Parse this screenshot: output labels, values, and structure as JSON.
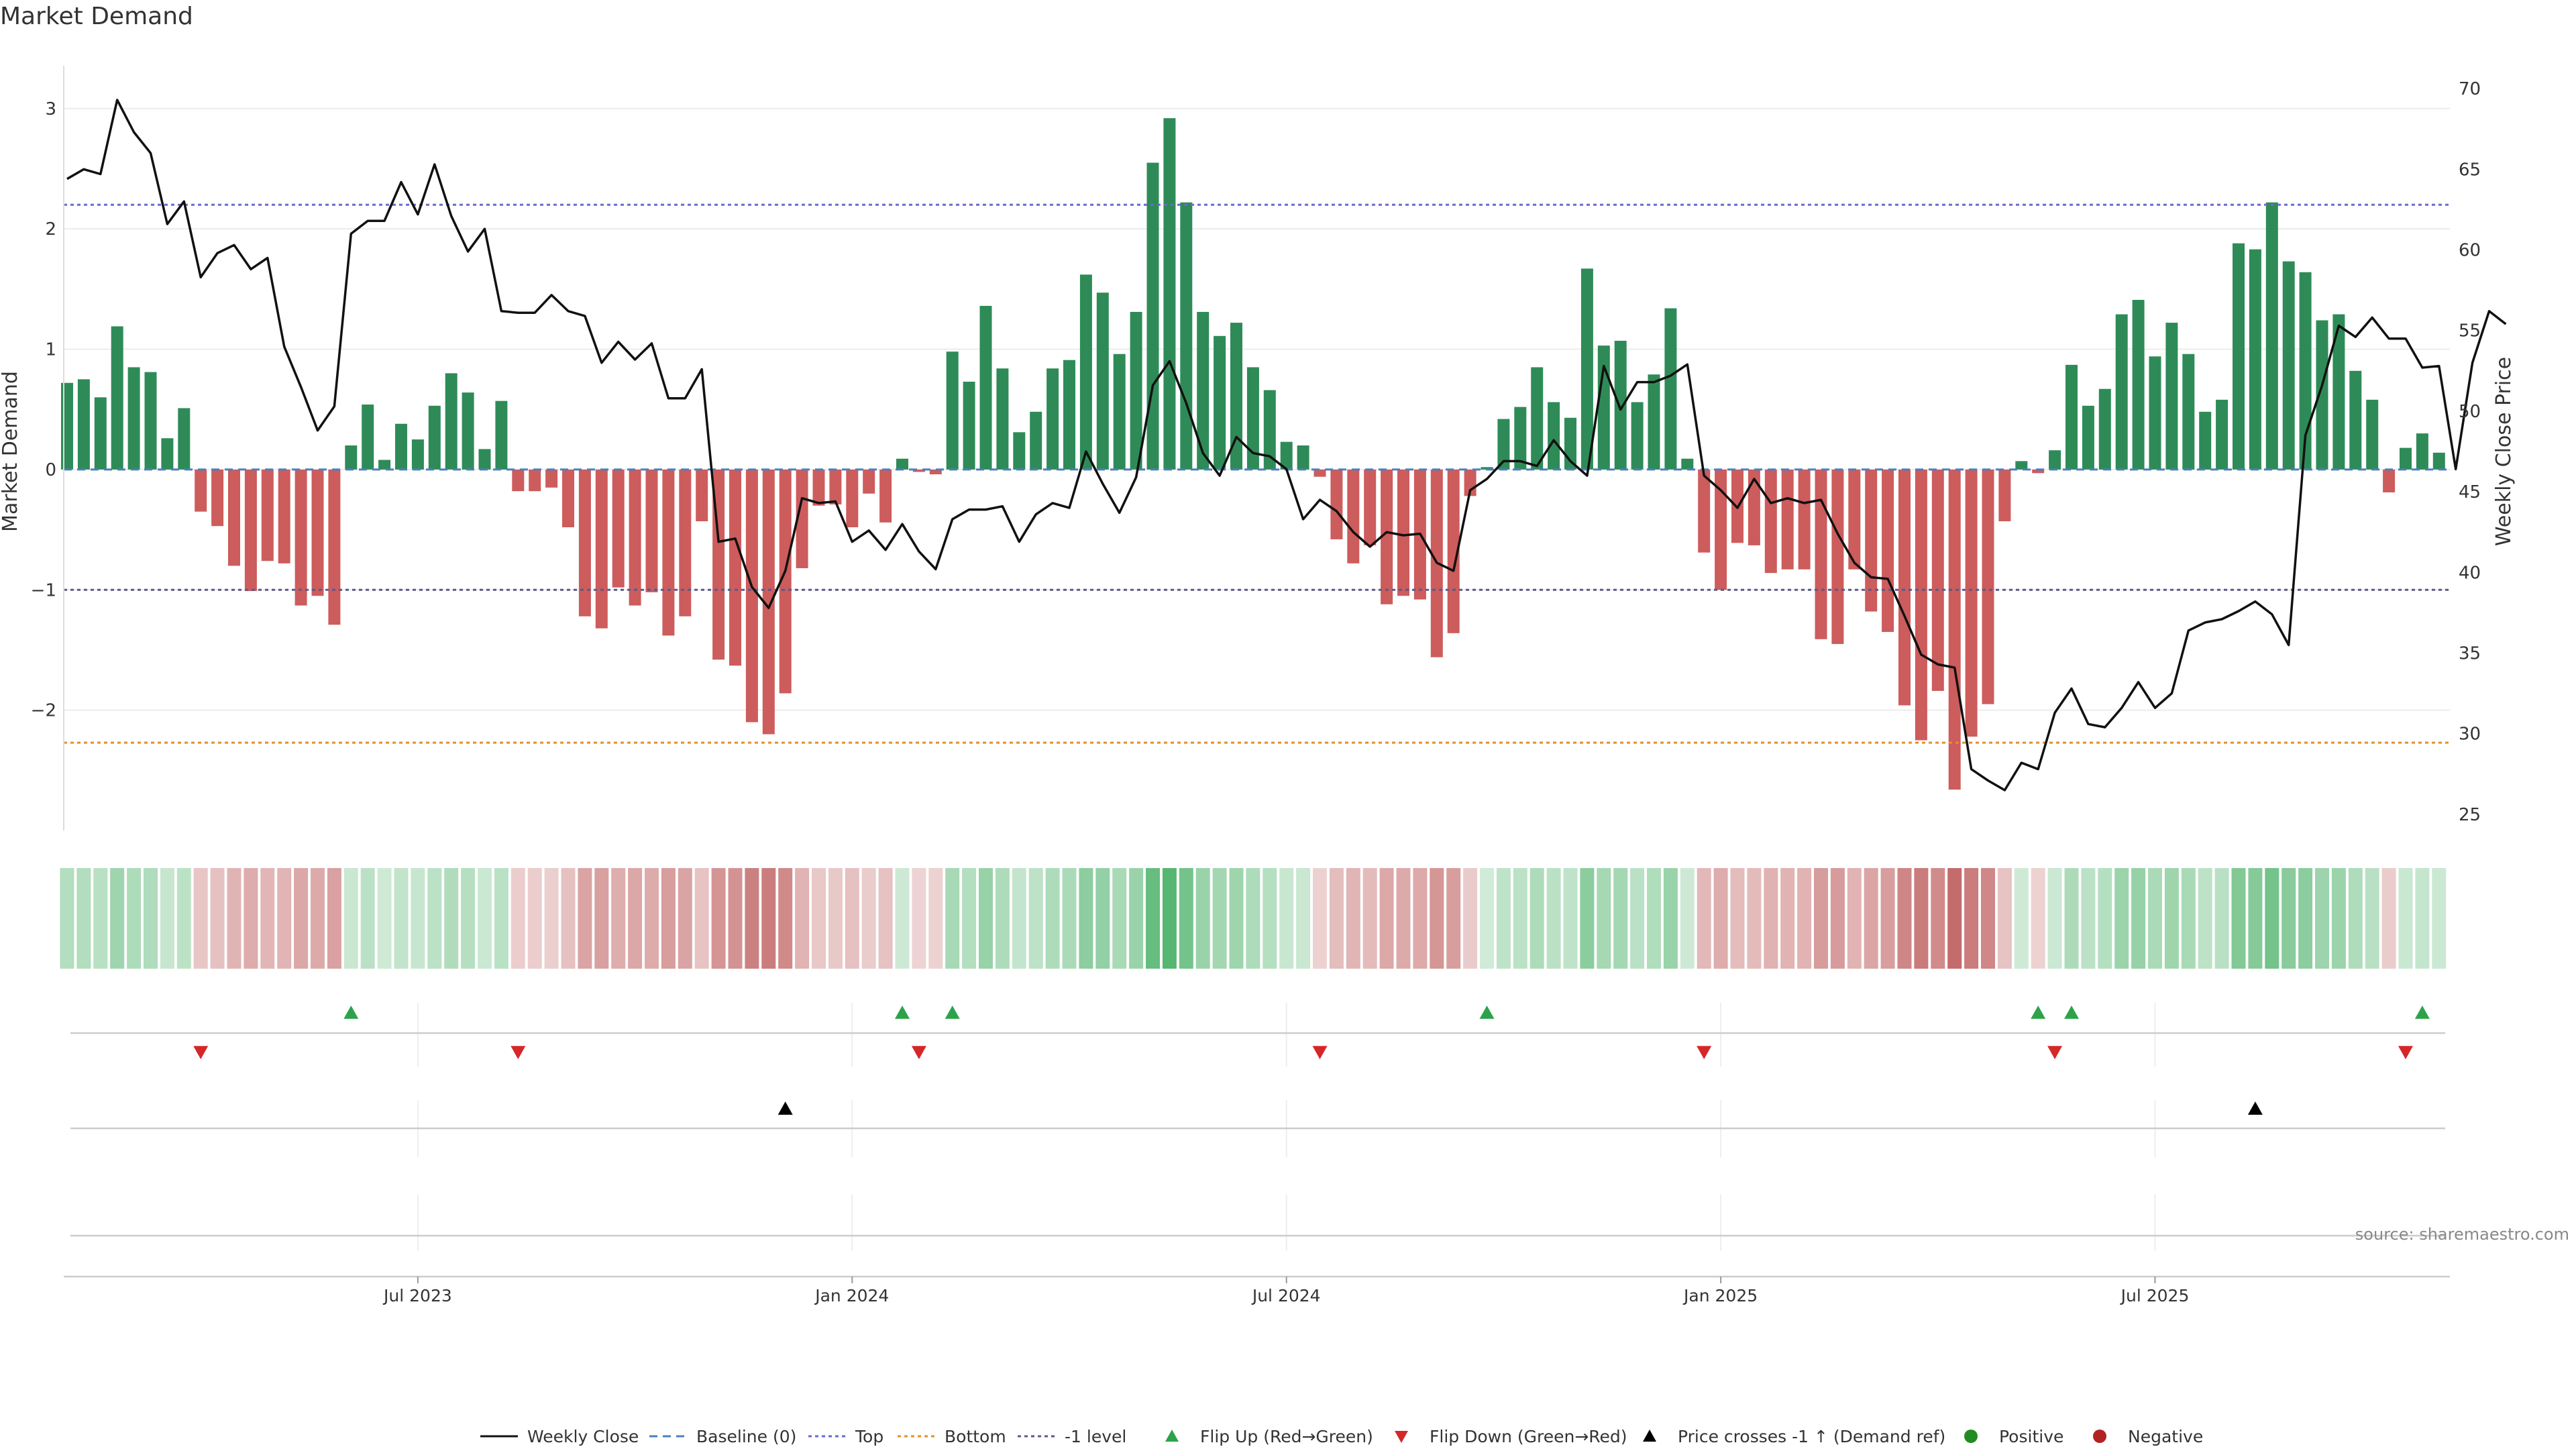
{
  "title": "Market Demand",
  "source": "source: sharemaestro.com",
  "colors": {
    "green": "#2e8b57",
    "red": "#cd5c5c",
    "price": "#111111",
    "top": "#6a6acd",
    "bottom": "#e3902a",
    "minus1": "#5a5a8a",
    "flip_up": "#2ca34a",
    "flip_down": "#d62728",
    "cross": "#000000",
    "positive": "#228b22",
    "negative": "#b22222",
    "grid": "#ececec"
  },
  "chart_data": {
    "type": "bar+line",
    "title": "Market Demand",
    "ylabel_left": "Market Demand",
    "ylabel_right": "Weekly Close Price",
    "ylim_left": [
      -3.0,
      3.3
    ],
    "ylim_right": [
      24,
      71
    ],
    "left_ticks": [
      3,
      2,
      1,
      0,
      -1,
      -2
    ],
    "left_tick_labels": [
      "3",
      "2",
      "1",
      "0",
      "−1",
      "−2"
    ],
    "right_ticks": [
      70,
      65,
      60,
      55,
      50,
      45,
      40,
      35,
      30,
      25
    ],
    "top_level": 2.2,
    "bottom_level": -2.27,
    "minus1_level": -1.0,
    "x_tick_indices": [
      21,
      47,
      73,
      99,
      125
    ],
    "x_tick_labels": [
      "Jul 2023",
      "Jan 2024",
      "Jul 2024",
      "Jan 2025",
      "Jul 2025"
    ],
    "demand": [
      0.72,
      0.75,
      0.6,
      1.19,
      0.85,
      0.81,
      0.26,
      0.51,
      -0.35,
      -0.47,
      -0.8,
      -1.01,
      -0.76,
      -0.78,
      -1.13,
      -1.05,
      -1.29,
      0.2,
      0.54,
      0.08,
      0.38,
      0.25,
      0.53,
      0.8,
      0.64,
      0.17,
      0.57,
      -0.18,
      -0.18,
      -0.15,
      -0.48,
      -1.22,
      -1.32,
      -0.98,
      -1.13,
      -1.02,
      -1.38,
      -1.22,
      -0.43,
      -1.58,
      -1.63,
      -2.1,
      -2.2,
      -1.86,
      -0.82,
      -0.3,
      -0.29,
      -0.48,
      -0.2,
      -0.44,
      0.09,
      -0.02,
      -0.04,
      0.98,
      0.73,
      1.36,
      0.84,
      0.31,
      0.48,
      0.84,
      0.91,
      1.62,
      1.47,
      0.96,
      1.31,
      2.55,
      2.92,
      2.22,
      1.31,
      1.11,
      1.22,
      0.85,
      0.66,
      0.23,
      0.2,
      -0.06,
      -0.58,
      -0.78,
      -0.63,
      -1.12,
      -1.05,
      -1.08,
      -1.56,
      -1.36,
      -0.22,
      0.02,
      0.42,
      0.52,
      0.85,
      0.56,
      0.43,
      1.67,
      1.03,
      1.07,
      0.56,
      0.79,
      1.34,
      0.09,
      -0.69,
      -1.0,
      -0.61,
      -0.63,
      -0.86,
      -0.83,
      -0.83,
      -1.41,
      -1.45,
      -0.83,
      -1.18,
      -1.35,
      -1.96,
      -2.25,
      -1.84,
      -2.66,
      -2.22,
      -1.95,
      -0.43,
      0.07,
      -0.03,
      0.16,
      0.87,
      0.53,
      0.67,
      1.29,
      1.41,
      0.94,
      1.22,
      0.96,
      0.48,
      0.58,
      1.88,
      1.83,
      2.22,
      1.73,
      1.64,
      1.24,
      1.29,
      0.82,
      0.58,
      -0.19,
      0.18,
      0.3,
      0.14
    ],
    "close": [
      64.4,
      65.0,
      64.7,
      69.3,
      67.3,
      66.0,
      61.6,
      63.0,
      58.3,
      59.8,
      60.3,
      58.8,
      59.5,
      54.0,
      51.5,
      48.8,
      50.3,
      61.0,
      61.8,
      61.8,
      64.2,
      62.2,
      65.3,
      62.1,
      59.9,
      61.3,
      56.2,
      56.1,
      56.1,
      57.2,
      56.2,
      55.9,
      53.0,
      54.3,
      53.2,
      54.2,
      50.8,
      50.8,
      52.6,
      41.9,
      42.1,
      39.1,
      37.8,
      40.1,
      44.6,
      44.3,
      44.4,
      41.9,
      42.6,
      41.4,
      43.0,
      41.3,
      40.2,
      43.3,
      43.9,
      43.9,
      44.1,
      41.9,
      43.6,
      44.3,
      44.0,
      47.5,
      45.5,
      43.7,
      45.9,
      51.6,
      53.1,
      50.5,
      47.4,
      46.0,
      48.4,
      47.4,
      47.2,
      46.4,
      43.3,
      44.5,
      43.8,
      42.5,
      41.6,
      42.5,
      42.3,
      42.4,
      40.6,
      40.1,
      45.1,
      45.8,
      46.9,
      46.9,
      46.6,
      48.2,
      46.9,
      46.0,
      52.8,
      50.1,
      51.8,
      51.8,
      52.2,
      52.9,
      46.0,
      45.1,
      44.0,
      45.8,
      44.3,
      44.6,
      44.3,
      44.5,
      42.4,
      40.6,
      39.7,
      39.6,
      37.3,
      34.9,
      34.3,
      34.1,
      27.8,
      27.1,
      26.5,
      28.2,
      27.8,
      31.3,
      32.8,
      30.6,
      30.4,
      31.6,
      33.2,
      31.6,
      32.5,
      36.4,
      36.9,
      37.1,
      37.6,
      38.2,
      37.4,
      35.5,
      48.5,
      51.6,
      55.3,
      54.6,
      55.8,
      54.5,
      54.5,
      52.7,
      52.8,
      46.4,
      53.0,
      56.2,
      55.4
    ],
    "flip_up_indices": [
      17,
      50,
      53,
      85,
      118,
      120,
      141
    ],
    "flip_down_indices": [
      8,
      27,
      51,
      75,
      98,
      119,
      140
    ],
    "price_cross_indices": [
      43,
      131
    ]
  },
  "legend": [
    {
      "label": "Weekly Close",
      "symbol": "line"
    },
    {
      "label": "Baseline (0)",
      "symbol": "dash"
    },
    {
      "label": "Top",
      "symbol": "dot-blue"
    },
    {
      "label": "Bottom",
      "symbol": "dot-orange"
    },
    {
      "label": "-1 level",
      "symbol": "dot-grey"
    },
    {
      "label": "Flip Up (Red→Green)",
      "symbol": "tri-up-green"
    },
    {
      "label": "Flip Down (Green→Red)",
      "symbol": "tri-down-red"
    },
    {
      "label": "Price crosses -1 ↑ (Demand ref)",
      "symbol": "tri-up-black"
    },
    {
      "label": "Positive",
      "symbol": "circle-green"
    },
    {
      "label": "Negative",
      "symbol": "circle-red"
    }
  ]
}
